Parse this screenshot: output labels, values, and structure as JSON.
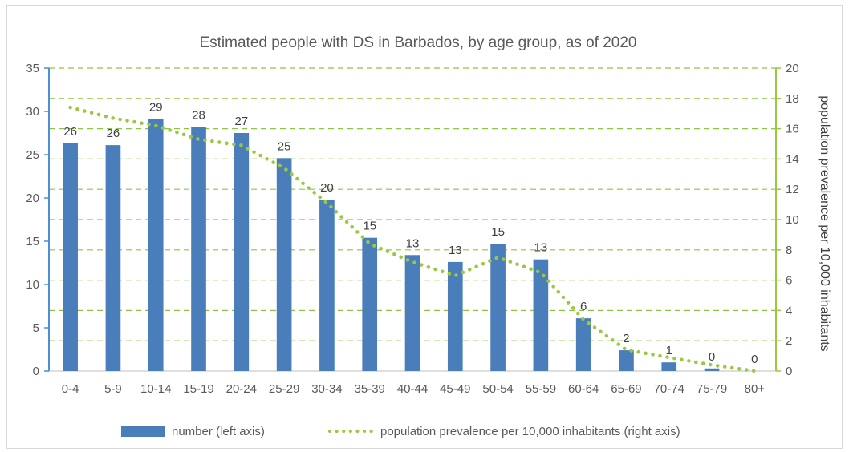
{
  "chart_data": {
    "type": "bar",
    "title": "Estimated people with DS in Barbados, by age group, as of 2020",
    "categories": [
      "0-4",
      "5-9",
      "10-14",
      "15-19",
      "20-24",
      "25-29",
      "30-34",
      "35-39",
      "40-44",
      "45-49",
      "50-54",
      "55-59",
      "60-64",
      "65-69",
      "70-74",
      "75-79",
      "80+"
    ],
    "series": [
      {
        "name": "number (left axis)",
        "axis": "left",
        "type": "bar",
        "color": "#4a7ebb",
        "values": [
          26.3,
          26.1,
          29.1,
          28.2,
          27.5,
          24.6,
          19.8,
          15.4,
          13.4,
          12.6,
          14.7,
          12.9,
          6.1,
          2.4,
          1.0,
          0.3,
          0
        ],
        "labels": [
          "26",
          "26",
          "29",
          "28",
          "27",
          "25",
          "20",
          "15",
          "13",
          "13",
          "15",
          "13",
          "6",
          "2",
          "1",
          "0",
          "0"
        ]
      },
      {
        "name": "population prevalence per 10,000 inhabitants (right axis)",
        "axis": "right",
        "type": "line",
        "style": "dotted",
        "color": "#9bc840",
        "values": [
          17.4,
          16.7,
          16.2,
          15.3,
          14.9,
          13.4,
          11.1,
          8.4,
          7.2,
          6.3,
          7.5,
          6.5,
          3.4,
          1.4,
          0.9,
          0.4,
          0
        ]
      }
    ],
    "ylabel": "",
    "y2label": "population prevalence per 10,000 inhabitants",
    "ylim": [
      0,
      35
    ],
    "yticks": [
      "0",
      "5",
      "10",
      "15",
      "20",
      "25",
      "30",
      "35"
    ],
    "y2lim": [
      0,
      20
    ],
    "y2ticks": [
      "0",
      "2",
      "4",
      "6",
      "8",
      "10",
      "12",
      "14",
      "16",
      "18",
      "20"
    ],
    "grid": "dashed horizontal on right-axis ticks",
    "legend": "bottom",
    "left_axis_color": "#4a90d6",
    "right_axis_color": "#9bc840",
    "grid_color": "#8dc63f"
  }
}
